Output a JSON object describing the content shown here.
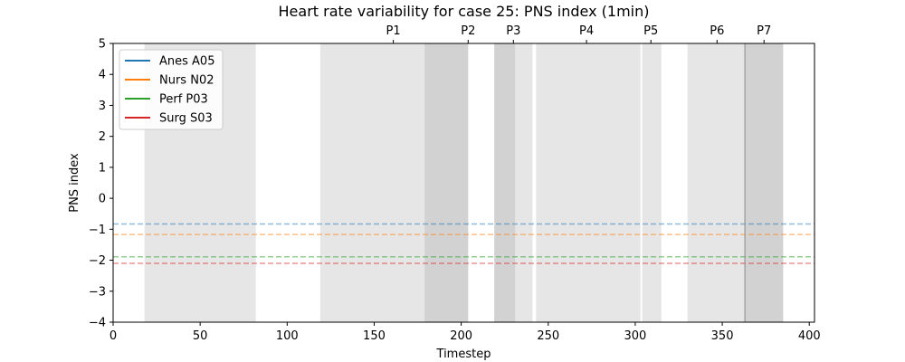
{
  "chart_data": {
    "type": "line",
    "title": "Heart rate variability for case 25: PNS index (1min)",
    "xlabel": "Timestep",
    "ylabel": "PNS index",
    "xlim": [
      0,
      403
    ],
    "ylim": [
      -4,
      5
    ],
    "xticks": [
      0,
      50,
      100,
      150,
      200,
      250,
      300,
      350,
      400
    ],
    "yticks": [
      -4,
      -3,
      -2,
      -1,
      0,
      1,
      2,
      3,
      4,
      5
    ],
    "xtick_labels": [
      "0",
      "50",
      "100",
      "150",
      "200",
      "250",
      "300",
      "350",
      "400"
    ],
    "ytick_labels": [
      "−4",
      "−3",
      "−2",
      "−1",
      "0",
      "1",
      "2",
      "3",
      "4",
      "5"
    ],
    "grid": false,
    "legend_position": "top-left",
    "series": [
      {
        "name": "Anes A05",
        "color": "#1f77b4",
        "baseline": -0.83
      },
      {
        "name": "Nurs N02",
        "color": "#ff7f0e",
        "baseline": -1.17
      },
      {
        "name": "Perf P03",
        "color": "#2ca02c",
        "baseline": -1.89
      },
      {
        "name": "Surg S03",
        "color": "#d62728",
        "baseline": -2.1
      }
    ],
    "shaded_spans": [
      [
        18,
        82
      ],
      [
        119,
        204
      ],
      [
        179,
        204
      ],
      [
        219,
        241
      ],
      [
        219,
        231
      ],
      [
        243,
        303
      ],
      [
        304,
        315
      ],
      [
        330,
        385
      ],
      [
        363,
        385
      ]
    ],
    "phases": [
      {
        "label": "P1",
        "x": 161
      },
      {
        "label": "P2",
        "x": 204
      },
      {
        "label": "P3",
        "x": 230
      },
      {
        "label": "P4",
        "x": 272
      },
      {
        "label": "P5",
        "x": 309
      },
      {
        "label": "P6",
        "x": 347
      },
      {
        "label": "P7",
        "x": 374
      }
    ],
    "phase_dividers": [
      363
    ]
  }
}
